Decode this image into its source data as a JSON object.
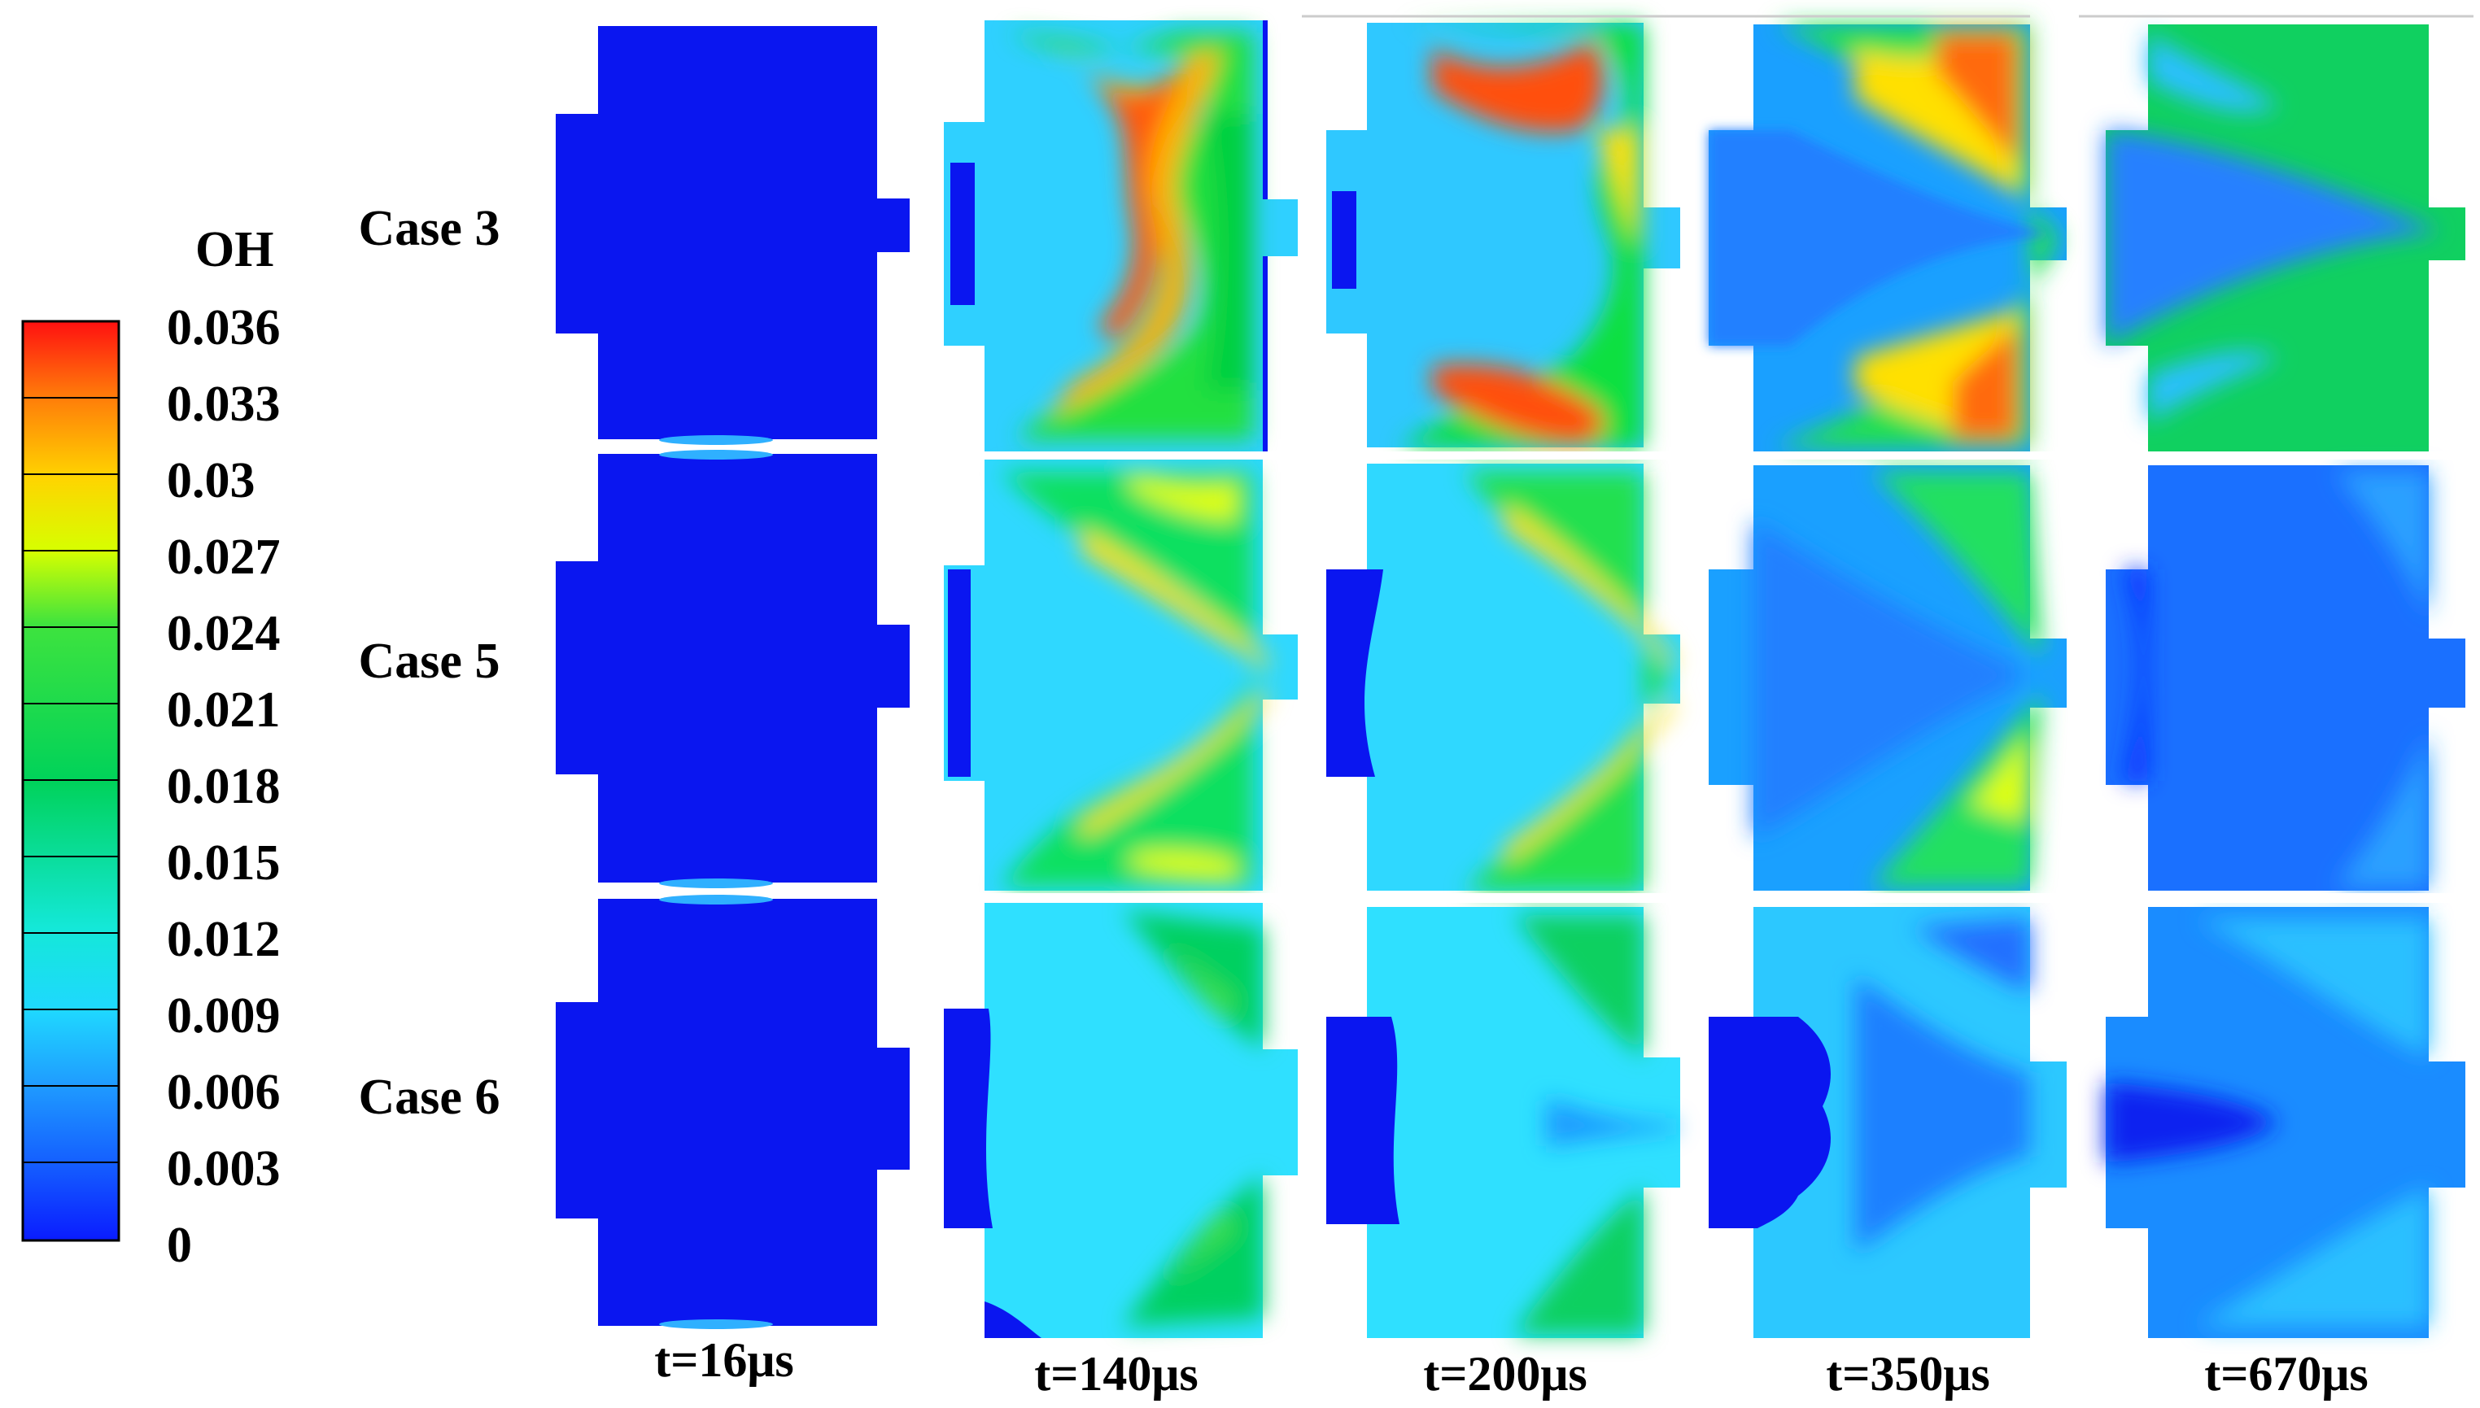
{
  "colorbar": {
    "title": "OH",
    "ticks": [
      "0.036",
      "0.033",
      "0.03",
      "0.027",
      "0.024",
      "0.021",
      "0.018",
      "0.015",
      "0.012",
      "0.009",
      "0.006",
      "0.003",
      "0"
    ],
    "colors_top_to_bottom": [
      "#ff1010",
      "#ff7a0a",
      "#ffd400",
      "#d6ff00",
      "#3ee33e",
      "#00e63c",
      "#00d26e",
      "#00e0b4",
      "#14e8e6",
      "#1fb0ff",
      "#146cff",
      "#0a28ff"
    ]
  },
  "rows": [
    {
      "label": "Case 3"
    },
    {
      "label": "Case 5"
    },
    {
      "label": "Case 6"
    }
  ],
  "columns": [
    {
      "label": "t=16μs"
    },
    {
      "label": "t=140μs"
    },
    {
      "label": "t=200μs"
    },
    {
      "label": "t=350μs"
    },
    {
      "label": "t=670μs"
    }
  ]
}
